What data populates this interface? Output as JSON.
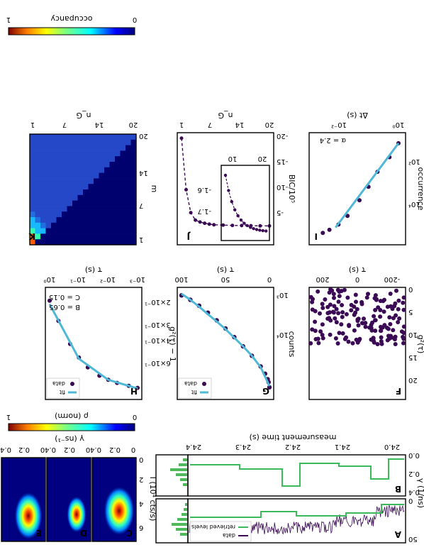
{
  "panels": {
    "A": {
      "letter": "A",
      "ylabel": "cts/0.5 ms",
      "yticks": [
        "0",
        "50"
      ],
      "legend": [
        "data",
        "retrieved levels"
      ]
    },
    "B": {
      "letter": "B",
      "ylabel": "γ (1/ns)",
      "yticks": [
        "0.0",
        "0.2",
        "0.4"
      ],
      "xlabel": "measurement time (s)",
      "xticks": [
        "24.0",
        "24.1",
        "24.2",
        "24.3",
        "24.4"
      ]
    },
    "CDE": {
      "ylabel": "I (10⁴ cts/s)",
      "yticks": [
        "0",
        "2",
        "4",
        "6"
      ],
      "xlabel": "γ (ns⁻¹)",
      "xticks": [
        "0",
        "0.2",
        "0.4"
      ],
      "letters": [
        "C",
        "D",
        "E"
      ],
      "colorbar_label": "ρ (norm)",
      "colorbar_ticks": [
        "0",
        "1"
      ]
    },
    "F": {
      "letter": "F",
      "ylabel": "g²(τ)",
      "yticks": [
        "0",
        "5",
        "10",
        "15",
        "20"
      ],
      "xlabel": "τ (s)",
      "xticks": [
        "-200",
        "0",
        "200"
      ]
    },
    "G": {
      "letter": "G",
      "ylabel": "counts",
      "yticks": [
        "10³",
        "10⁴"
      ],
      "xlabel": "τ (s)",
      "xticks": [
        "0",
        "50",
        "100"
      ],
      "legend": [
        "fit",
        "data"
      ]
    },
    "H": {
      "letter": "H",
      "ylabel": "g²(τ) − 1",
      "yticks": [
        "2×10⁻¹",
        "3×10⁻¹",
        "4×10⁻¹",
        "6×10⁻¹"
      ],
      "xlabel": "τ (s)",
      "xticks": [
        "10⁻³",
        "10⁻²",
        "10⁻¹",
        "10⁰"
      ],
      "legend": [
        "fit",
        "data"
      ],
      "annotation_B": "B = 0.65",
      "annotation_C": "C = 0.15"
    },
    "I": {
      "letter": "I",
      "ylabel": "occurrence",
      "yticks": [
        "10²",
        "10⁴"
      ],
      "xlabel": "Δt (s)",
      "xticks": [
        "10⁻²",
        "10⁰"
      ],
      "annotation": "α = 2.4"
    },
    "J": {
      "letter": "J",
      "ylabel": "BIC/10⁵",
      "yticks": [
        "-20",
        "-15",
        "-10",
        "-5"
      ],
      "xlabel": "n_G",
      "xticks": [
        "1",
        "7",
        "14",
        "20"
      ],
      "inset_yticks": [
        "-1.7",
        "-1.6"
      ],
      "inset_xticks": [
        "10",
        "20"
      ]
    },
    "K": {
      "letter": "K",
      "ylabel": "m",
      "yticks": [
        "1",
        "7",
        "14",
        "20"
      ],
      "xlabel": "n_G",
      "xticks": [
        "1",
        "7",
        "14",
        "20"
      ],
      "colorbar_label": "occupancy",
      "colorbar_ticks": [
        "0",
        "1"
      ]
    }
  },
  "colors": {
    "data": "#3b0a55",
    "fit": "#4fb8d6",
    "levels": "#3cb95a",
    "bar": "#4fb85a"
  },
  "chart_data": [
    {
      "type": "line",
      "panel": "G",
      "x_scale": "linear",
      "y_scale": "log",
      "xlim": [
        0,
        100
      ],
      "series": [
        {
          "name": "data",
          "x": [
            0,
            1,
            2,
            5,
            10,
            20,
            30,
            40,
            50,
            60,
            70,
            80,
            90,
            100
          ],
          "values": [
            40000,
            32000,
            28000,
            22000,
            16000,
            10000,
            6600,
            4400,
            3000,
            2100,
            1500,
            1100,
            850,
            700
          ]
        },
        {
          "name": "fit",
          "x": [
            0,
            10,
            20,
            30,
            40,
            50,
            60,
            70,
            80,
            90,
            100
          ],
          "values": [
            38000,
            16500,
            10000,
            6600,
            4500,
            3100,
            2200,
            1600,
            1150,
            850,
            650
          ]
        }
      ]
    },
    {
      "type": "scatter",
      "panel": "H",
      "x_scale": "log",
      "y_scale": "log",
      "series": [
        {
          "name": "data",
          "x": [
            0.001,
            0.002,
            0.005,
            0.01,
            0.02,
            0.05,
            0.1,
            0.2,
            0.5,
            1
          ],
          "values": [
            0.78,
            0.75,
            0.71,
            0.67,
            0.62,
            0.53,
            0.44,
            0.34,
            0.22,
            0.15
          ]
        },
        {
          "name": "fit",
          "x": [
            0.001,
            0.01,
            0.1,
            1
          ],
          "values": [
            0.79,
            0.67,
            0.45,
            0.16
          ]
        }
      ]
    },
    {
      "type": "scatter",
      "panel": "I",
      "x_scale": "log",
      "y_scale": "log",
      "series": [
        {
          "name": "data",
          "x": [
            0.003,
            0.005,
            0.01,
            0.02,
            0.05,
            0.1,
            0.2,
            0.5,
            1
          ],
          "values": [
            200000,
            150000,
            90000,
            40000,
            9000,
            2500,
            600,
            150,
            40
          ]
        }
      ]
    },
    {
      "type": "line",
      "panel": "J",
      "x": [
        1,
        2,
        3,
        4,
        5,
        6,
        7,
        8,
        10,
        12,
        14,
        16,
        18,
        20
      ],
      "series": [
        {
          "name": "BIC",
          "values": [
            -19.8,
            -11.5,
            -7.8,
            -6.6,
            -6.3,
            -6.1,
            -5.95,
            -5.85,
            -5.8,
            -5.75,
            -5.72,
            -5.7,
            -5.68,
            -5.67
          ]
        }
      ]
    }
  ]
}
